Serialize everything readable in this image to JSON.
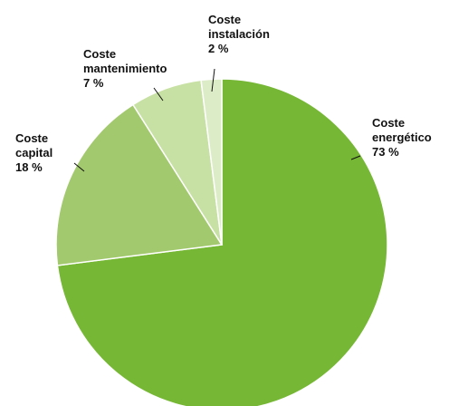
{
  "chart_data": {
    "type": "pie",
    "title": "",
    "start": "top",
    "direction": "clockwise",
    "slices": [
      {
        "name": "Coste energético",
        "value": 73,
        "label_lines": [
          "Coste",
          "energético",
          "73 %"
        ],
        "color": "#76b735"
      },
      {
        "name": "Coste capital",
        "value": 18,
        "label_lines": [
          "Coste",
          "capital",
          "18 %"
        ],
        "color": "#a3c96e"
      },
      {
        "name": "Coste mantenimiento",
        "value": 7,
        "label_lines": [
          "Coste",
          "mantenimiento",
          "7 %"
        ],
        "color": "#c7e0a3"
      },
      {
        "name": "Coste instalación",
        "value": 2,
        "label_lines": [
          "Coste",
          "instalación",
          "2 %"
        ],
        "color": "#dcecc7"
      }
    ],
    "legend": "none",
    "label_placement": "outside with leader lines"
  }
}
